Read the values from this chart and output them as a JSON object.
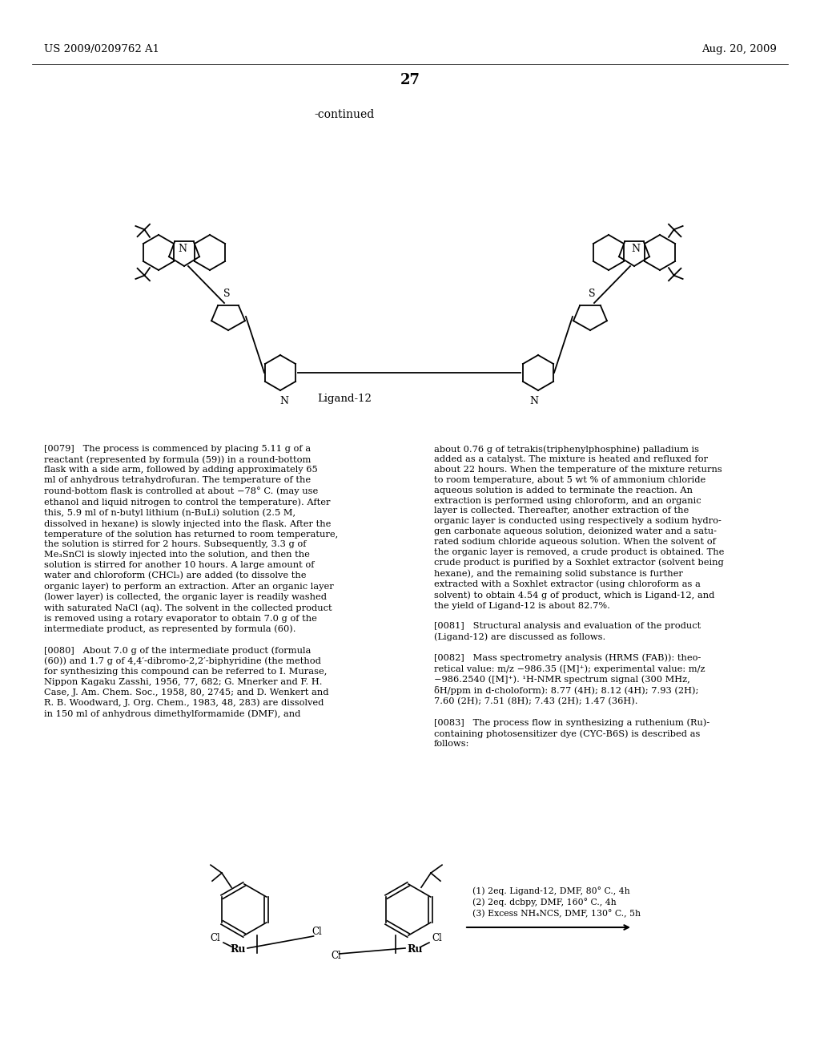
{
  "background_color": "#ffffff",
  "header_left": "US 2009/0209762 A1",
  "header_right": "Aug. 20, 2009",
  "page_number": "27",
  "continued_text": "-continued",
  "ligand_label": "Ligand-12",
  "reaction_step1": "(1) 2eq. Ligand-12, DMF, 80° C., 4h",
  "reaction_step2": "(2) 2eq. dcbpy, DMF, 160° C., 4h",
  "reaction_step3": "(3) Excess NH₄NCS, DMF, 130° C., 5h"
}
